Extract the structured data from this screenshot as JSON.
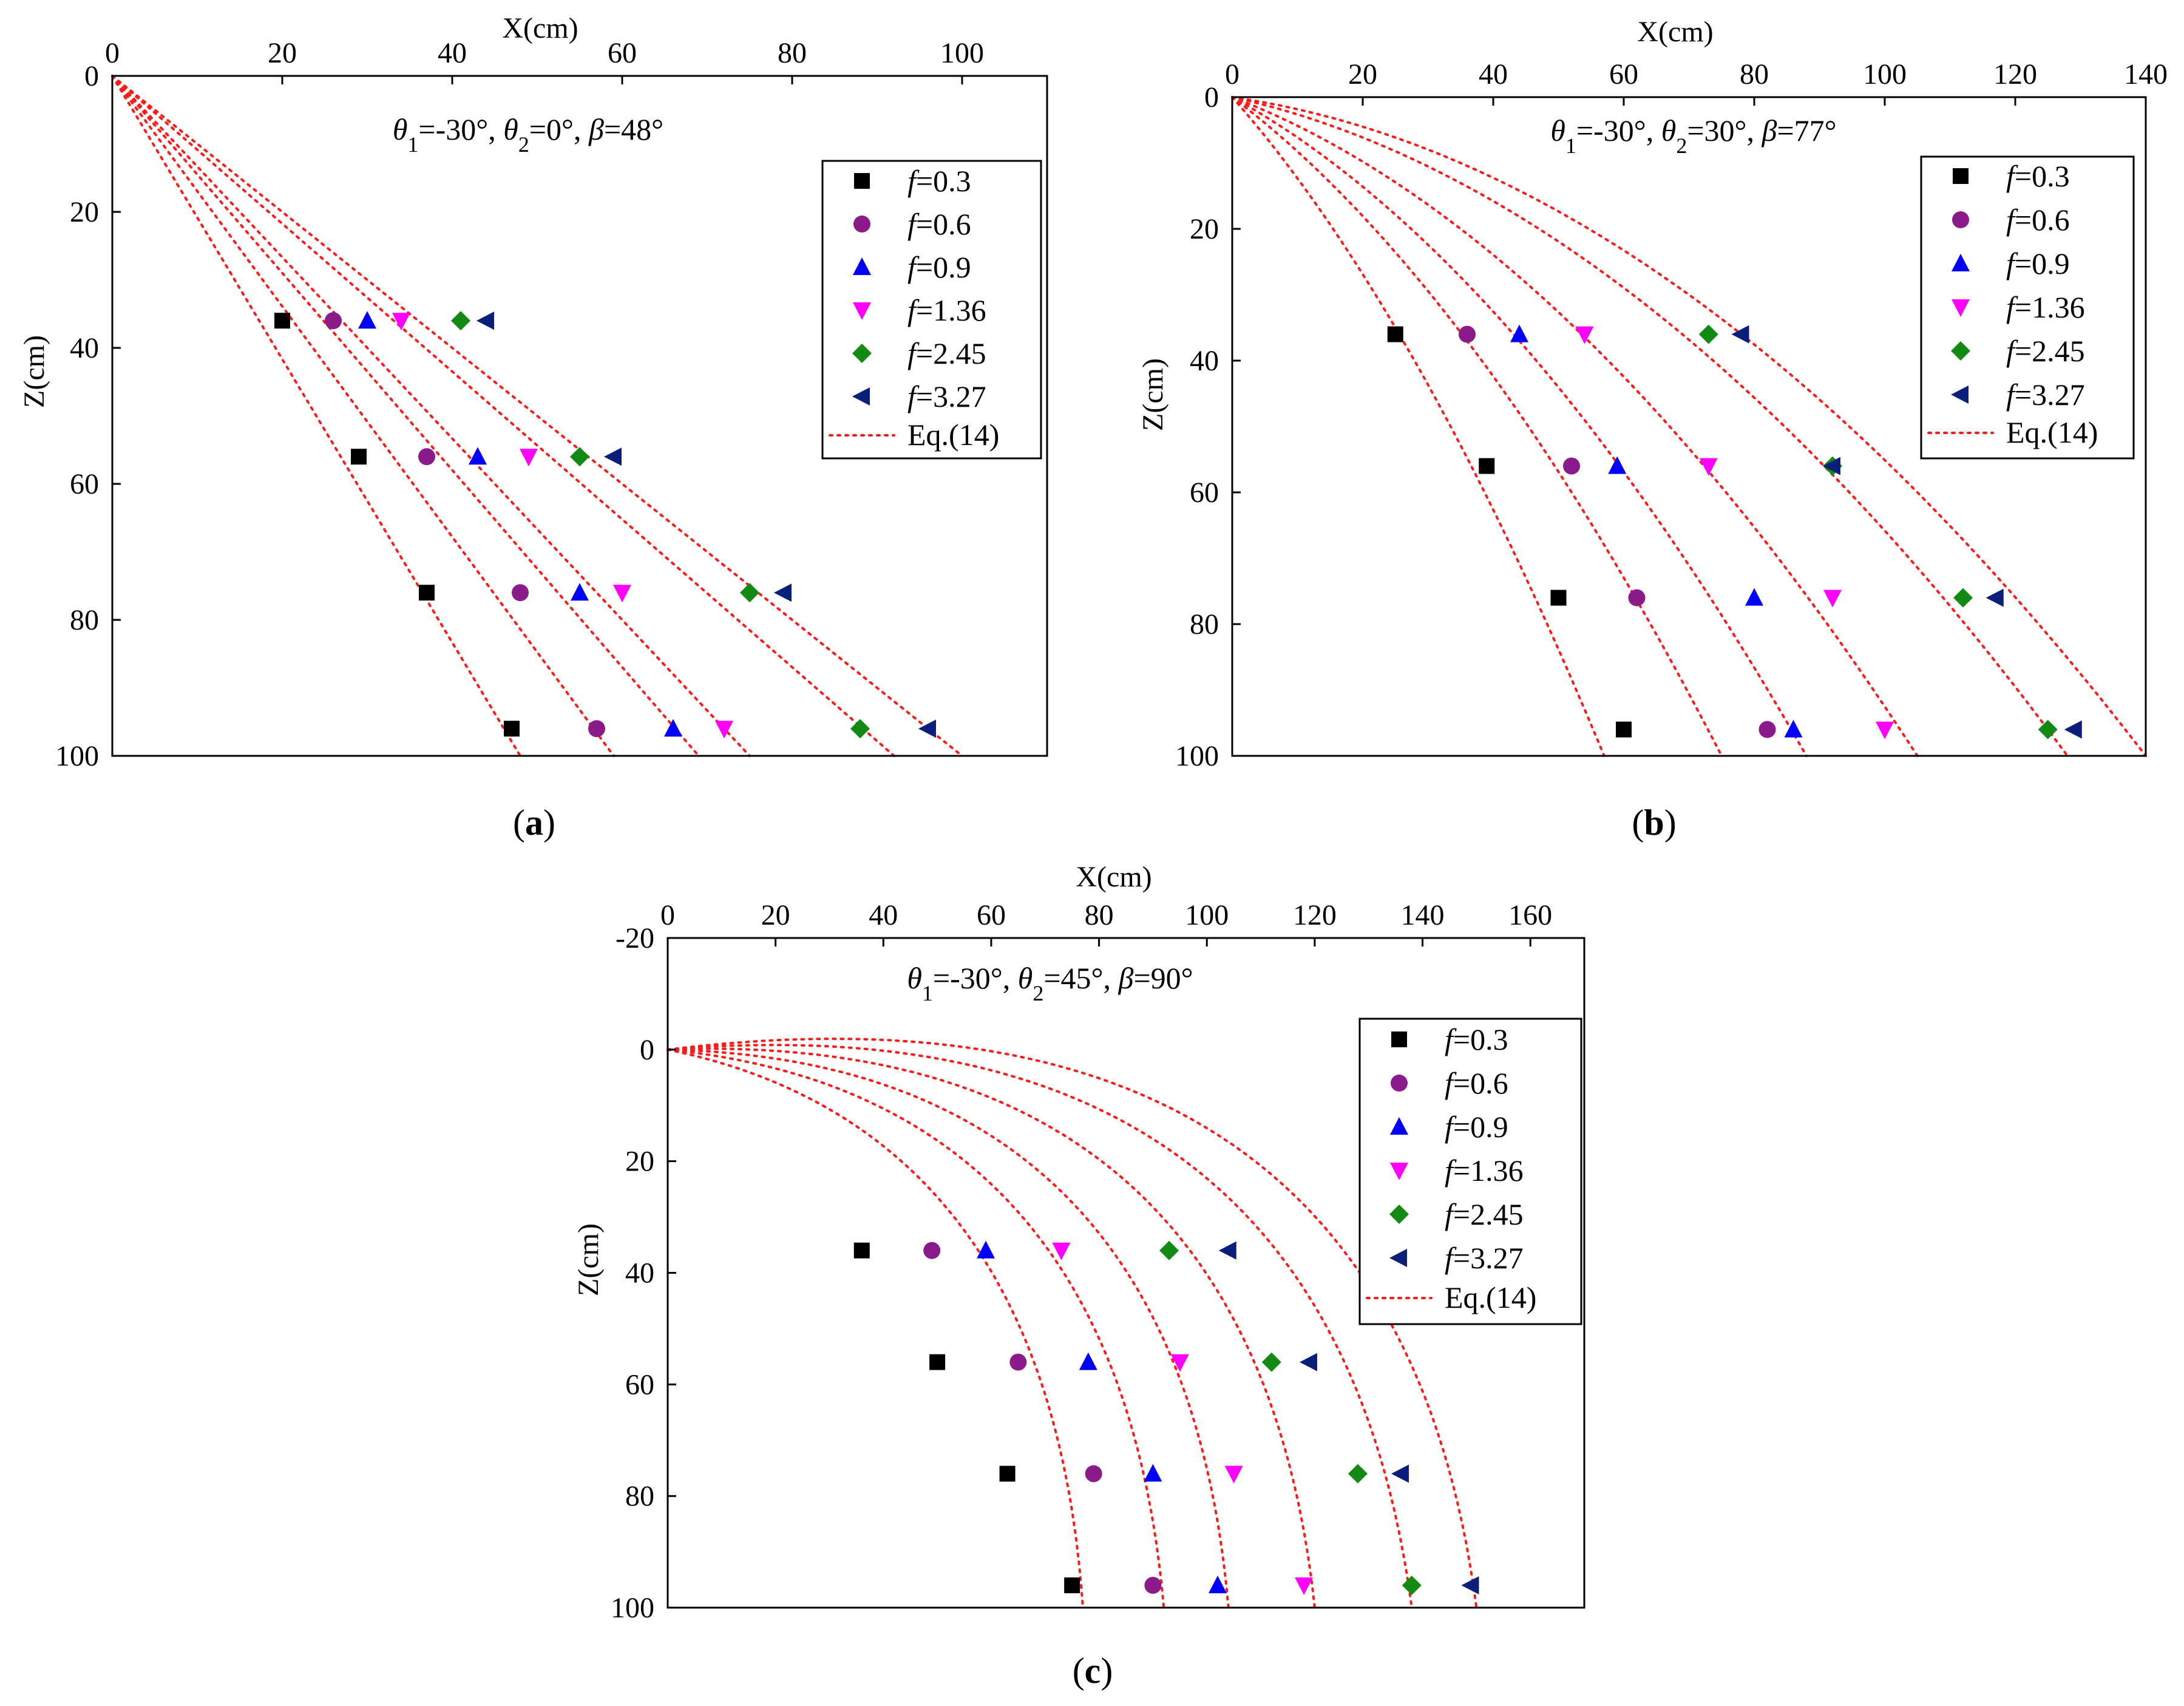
{
  "figure": {
    "colors": {
      "curve": "#ff1a1a",
      "series": [
        "#000000",
        "#8b1a8b",
        "#0000ff",
        "#ff00ff",
        "#138a13",
        "#0a1f7a"
      ]
    },
    "markers": [
      "square",
      "circle",
      "triangle-up",
      "triangle-down",
      "diamond",
      "triangle-left"
    ]
  },
  "chart_data": [
    {
      "id": "a",
      "type": "scatter",
      "sub_label_text": "(a)",
      "title_parts": {
        "t1": "θ",
        "s1": "1",
        "v1": "=-30°, ",
        "t2": "θ",
        "s2": "2",
        "v2": "=0°, ",
        "b": "β",
        "bv": "=48°"
      },
      "xlabel": "X(cm)",
      "ylabel": "Z(cm)",
      "xlim": [
        0,
        110
      ],
      "ylim": [
        0,
        100
      ],
      "xticks": [
        0,
        20,
        40,
        60,
        80,
        100
      ],
      "yticks": [
        0,
        20,
        40,
        60,
        80,
        100
      ],
      "z_levels": [
        36,
        56,
        76,
        96
      ],
      "legend": {
        "series_labels": [
          {
            "f": "f",
            "v": "=0.3"
          },
          {
            "f": "f",
            "v": "=0.6"
          },
          {
            "f": "f",
            "v": "=0.9"
          },
          {
            "f": "f",
            "v": "=1.36"
          },
          {
            "f": "f",
            "v": "=2.45"
          },
          {
            "f": "f",
            "v": "=3.27"
          }
        ],
        "curve_label": "Eq.(14)",
        "position": "top-right"
      },
      "series": [
        {
          "name": "f=0.3",
          "x": [
            20,
            29,
            37,
            47
          ]
        },
        {
          "name": "f=0.6",
          "x": [
            26,
            37,
            48,
            57
          ]
        },
        {
          "name": "f=0.9",
          "x": [
            30,
            43,
            55,
            66
          ]
        },
        {
          "name": "f=1.36",
          "x": [
            34,
            49,
            60,
            72
          ]
        },
        {
          "name": "f=2.45",
          "x": [
            41,
            55,
            75,
            88
          ]
        },
        {
          "name": "f=3.27",
          "x": [
            44,
            59,
            79,
            96
          ]
        }
      ],
      "curves": [
        {
          "series": "f=0.3",
          "x100": 48,
          "bow": 0
        },
        {
          "series": "f=0.6",
          "x100": 59,
          "bow": 0
        },
        {
          "series": "f=0.9",
          "x100": 69,
          "bow": 0
        },
        {
          "series": "f=1.36",
          "x100": 75,
          "bow": 0
        },
        {
          "series": "f=2.45",
          "x100": 92,
          "bow": 0
        },
        {
          "series": "f=3.27",
          "x100": 100,
          "bow": 0
        }
      ]
    },
    {
      "id": "b",
      "type": "scatter",
      "sub_label_text": "(b)",
      "title_parts": {
        "t1": "θ",
        "s1": "1",
        "v1": "=-30°, ",
        "t2": "θ",
        "s2": "2",
        "v2": "=30°, ",
        "b": "β",
        "bv": "=77°"
      },
      "xlabel": "X(cm)",
      "ylabel": "Z(cm)",
      "xlim": [
        0,
        140
      ],
      "ylim": [
        0,
        100
      ],
      "xticks": [
        0,
        20,
        40,
        60,
        80,
        100,
        120,
        140
      ],
      "yticks": [
        0,
        20,
        40,
        60,
        80,
        100
      ],
      "z_levels": [
        36,
        56,
        76,
        96
      ],
      "legend": {
        "series_labels": [
          {
            "f": "f",
            "v": "=0.3"
          },
          {
            "f": "f",
            "v": "=0.6"
          },
          {
            "f": "f",
            "v": "=0.9"
          },
          {
            "f": "f",
            "v": "=1.36"
          },
          {
            "f": "f",
            "v": "=2.45"
          },
          {
            "f": "f",
            "v": "=3.27"
          }
        ],
        "curve_label": "Eq.(14)",
        "position": "top-right"
      },
      "series": [
        {
          "name": "f=0.3",
          "x": [
            25,
            39,
            50,
            60
          ]
        },
        {
          "name": "f=0.6",
          "x": [
            36,
            52,
            62,
            82
          ]
        },
        {
          "name": "f=0.9",
          "x": [
            44,
            59,
            80,
            86
          ]
        },
        {
          "name": "f=1.36",
          "x": [
            54,
            73,
            92,
            100
          ]
        },
        {
          "name": "f=2.45",
          "x": [
            73,
            92,
            112,
            125
          ]
        },
        {
          "name": "f=3.27",
          "x": [
            78,
            92,
            117,
            129
          ]
        }
      ],
      "curves": [
        {
          "series": "f=0.3",
          "x100": 57,
          "bow": 9
        },
        {
          "series": "f=0.6",
          "x100": 75,
          "bow": 11
        },
        {
          "series": "f=0.9",
          "x100": 88,
          "bow": 13
        },
        {
          "series": "f=1.36",
          "x100": 105,
          "bow": 15
        },
        {
          "series": "f=2.45",
          "x100": 128,
          "bow": 18
        },
        {
          "series": "f=3.27",
          "x100": 140,
          "bow": 20
        }
      ]
    },
    {
      "id": "c",
      "type": "scatter",
      "sub_label_text": "(c)",
      "title_parts": {
        "t1": "θ",
        "s1": "1",
        "v1": "=-30°, ",
        "t2": "θ",
        "s2": "2",
        "v2": "=45°, ",
        "b": "β",
        "bv": "=90°"
      },
      "xlabel": "X(cm)",
      "ylabel": "Z(cm)",
      "xlim": [
        0,
        170
      ],
      "ylim": [
        -20,
        100
      ],
      "xticks": [
        0,
        20,
        40,
        60,
        80,
        100,
        120,
        140,
        160
      ],
      "yticks": [
        -20,
        0,
        20,
        40,
        60,
        80,
        100
      ],
      "z_levels": [
        36,
        56,
        76,
        96
      ],
      "legend": {
        "series_labels": [
          {
            "f": "f",
            "v": "=0.3"
          },
          {
            "f": "f",
            "v": "=0.6"
          },
          {
            "f": "f",
            "v": "=0.9"
          },
          {
            "f": "f",
            "v": "=1.36"
          },
          {
            "f": "f",
            "v": "=2.45"
          },
          {
            "f": "f",
            "v": "=3.27"
          }
        ],
        "curve_label": "Eq.(14)",
        "position": "top-right"
      },
      "series": [
        {
          "name": "f=0.3",
          "x": [
            36,
            50,
            63,
            75
          ]
        },
        {
          "name": "f=0.6",
          "x": [
            49,
            65,
            79,
            90
          ]
        },
        {
          "name": "f=0.9",
          "x": [
            59,
            78,
            90,
            102
          ]
        },
        {
          "name": "f=1.36",
          "x": [
            73,
            95,
            105,
            118
          ]
        },
        {
          "name": "f=2.45",
          "x": [
            93,
            112,
            128,
            138
          ]
        },
        {
          "name": "f=3.27",
          "x": [
            104,
            119,
            136,
            149
          ]
        }
      ],
      "curves": [
        {
          "series": "f=0.3",
          "x100": 77,
          "bow": 18
        },
        {
          "series": "f=0.6",
          "x100": 92,
          "bow": 21
        },
        {
          "series": "f=0.9",
          "x100": 104,
          "bow": 24
        },
        {
          "series": "f=1.36",
          "x100": 120,
          "bow": 27
        },
        {
          "series": "f=2.45",
          "x100": 138,
          "bow": 30
        },
        {
          "series": "f=3.27",
          "x100": 150,
          "bow": 33
        }
      ]
    }
  ]
}
